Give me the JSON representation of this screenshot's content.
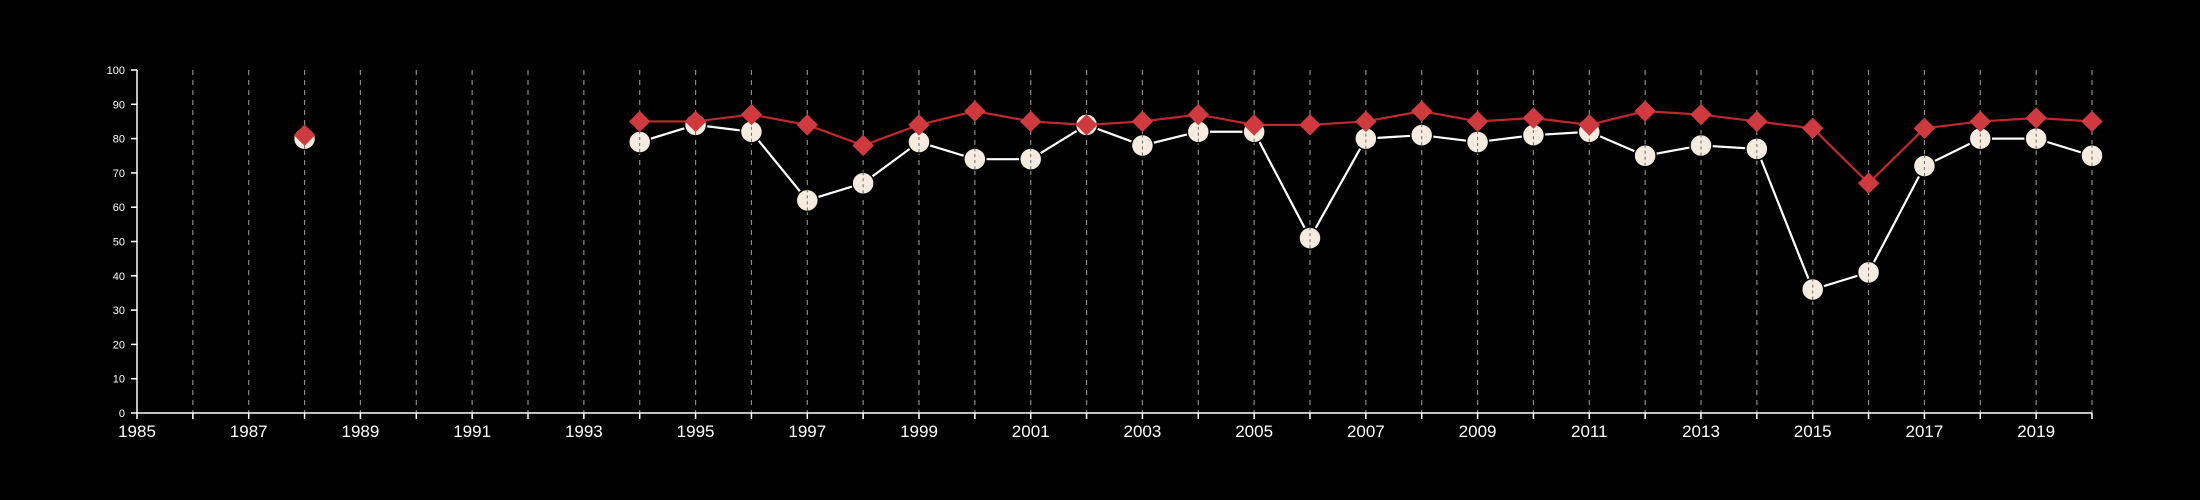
{
  "chart_data": {
    "type": "line",
    "title": "",
    "xlabel": "",
    "ylabel": "",
    "xlim": [
      1985,
      2020
    ],
    "ylim": [
      0,
      100
    ],
    "x_ticks": [
      "1985",
      "1987",
      "1989",
      "1991",
      "1993",
      "1995",
      "1997",
      "1999",
      "2001",
      "2003",
      "2005",
      "2007",
      "2009",
      "2011",
      "2013",
      "2015",
      "2017",
      "2019"
    ],
    "y_ticks": [
      "0",
      "10",
      "20",
      "30",
      "40",
      "50",
      "60",
      "70",
      "80",
      "90",
      "100"
    ],
    "grid": "vertical dashed lines at each year",
    "legend": "none",
    "series": [
      {
        "marker": "circle",
        "color": "#f5ecdf",
        "line_color": "#ffffff",
        "x": [
          1988,
          1994,
          1995,
          1996,
          1997,
          1998,
          1999,
          2000,
          2001,
          2002,
          2003,
          2004,
          2005,
          2006,
          2007,
          2008,
          2009,
          2010,
          2011,
          2012,
          2013,
          2014,
          2015,
          2016,
          2017,
          2018,
          2019,
          2020
        ],
        "y": [
          80,
          79,
          84,
          82,
          62,
          67,
          79,
          74,
          74,
          84,
          78,
          82,
          82,
          51,
          80,
          81,
          79,
          81,
          82,
          75,
          78,
          77,
          36,
          41,
          72,
          80,
          80,
          75
        ]
      },
      {
        "marker": "diamond",
        "color": "#d03a3e",
        "line_color": "#c0282e",
        "x": [
          1988,
          1994,
          1995,
          1996,
          1997,
          1998,
          1999,
          2000,
          2001,
          2002,
          2003,
          2004,
          2005,
          2006,
          2007,
          2008,
          2009,
          2010,
          2011,
          2012,
          2013,
          2014,
          2015,
          2016,
          2017,
          2018,
          2019,
          2020
        ],
        "y": [
          81,
          85,
          85,
          87,
          84,
          78,
          84,
          88,
          85,
          84,
          85,
          87,
          84,
          84,
          85,
          88,
          85,
          86,
          84,
          88,
          87,
          85,
          83,
          67,
          83,
          85,
          86,
          85
        ]
      }
    ]
  }
}
